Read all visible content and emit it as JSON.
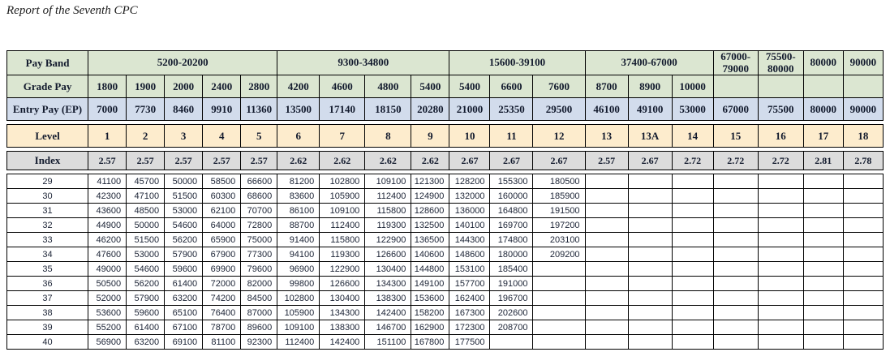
{
  "page": {
    "title": "Report of the Seventh CPC"
  },
  "colors": {
    "band_green": "#dbe6d1",
    "entry_blue": "#d2dcec",
    "level_tan": "#fdeccd",
    "index_gray": "#dcdcdc",
    "border": "#000000"
  },
  "table": {
    "corner_labels": {
      "pay_band": "Pay Band",
      "grade_pay": "Grade Pay",
      "entry_pay": "Entry Pay (EP)",
      "level": "Level",
      "index": "Index"
    },
    "pay_bands": [
      {
        "label": "5200-20200",
        "span": 5
      },
      {
        "label": "9300-34800",
        "span": 4
      },
      {
        "label": "15600-39100",
        "span": 3
      },
      {
        "label": "37400-67000",
        "span": 3
      },
      {
        "label": "67000-\n79000",
        "span": 1
      },
      {
        "label": "75500-\n80000",
        "span": 1
      },
      {
        "label": "80000",
        "span": 1
      },
      {
        "label": "90000",
        "span": 1
      }
    ],
    "grade_pay": [
      "1800",
      "1900",
      "2000",
      "2400",
      "2800",
      "4200",
      "4600",
      "4800",
      "5400",
      "5400",
      "6600",
      "7600",
      "8700",
      "8900",
      "10000",
      "",
      "",
      "",
      ""
    ],
    "entry_pay": [
      "7000",
      "7730",
      "8460",
      "9910",
      "11360",
      "13500",
      "17140",
      "18150",
      "20280",
      "21000",
      "25350",
      "29500",
      "46100",
      "49100",
      "53000",
      "67000",
      "75500",
      "80000",
      "90000"
    ],
    "levels": [
      "1",
      "2",
      "3",
      "4",
      "5",
      "6",
      "7",
      "8",
      "9",
      "10",
      "11",
      "12",
      "13",
      "13A",
      "14",
      "15",
      "16",
      "17",
      "18"
    ],
    "index_row": [
      "2.57",
      "2.57",
      "2.57",
      "2.57",
      "2.57",
      "2.62",
      "2.62",
      "2.62",
      "2.62",
      "2.67",
      "2.67",
      "2.67",
      "2.57",
      "2.67",
      "2.72",
      "2.72",
      "2.72",
      "2.81",
      "2.78"
    ],
    "rows": [
      {
        "label": "29",
        "values": [
          "41100",
          "45700",
          "50000",
          "58500",
          "66600",
          "81200",
          "102800",
          "109100",
          "121300",
          "128200",
          "155300",
          "180500",
          "",
          "",
          "",
          "",
          "",
          "",
          ""
        ]
      },
      {
        "label": "30",
        "values": [
          "42300",
          "47100",
          "51500",
          "60300",
          "68600",
          "83600",
          "105900",
          "112400",
          "124900",
          "132000",
          "160000",
          "185900",
          "",
          "",
          "",
          "",
          "",
          "",
          ""
        ]
      },
      {
        "label": "31",
        "values": [
          "43600",
          "48500",
          "53000",
          "62100",
          "70700",
          "86100",
          "109100",
          "115800",
          "128600",
          "136000",
          "164800",
          "191500",
          "",
          "",
          "",
          "",
          "",
          "",
          ""
        ]
      },
      {
        "label": "32",
        "values": [
          "44900",
          "50000",
          "54600",
          "64000",
          "72800",
          "88700",
          "112400",
          "119300",
          "132500",
          "140100",
          "169700",
          "197200",
          "",
          "",
          "",
          "",
          "",
          "",
          ""
        ]
      },
      {
        "label": "33",
        "values": [
          "46200",
          "51500",
          "56200",
          "65900",
          "75000",
          "91400",
          "115800",
          "122900",
          "136500",
          "144300",
          "174800",
          "203100",
          "",
          "",
          "",
          "",
          "",
          "",
          ""
        ]
      },
      {
        "label": "34",
        "values": [
          "47600",
          "53000",
          "57900",
          "67900",
          "77300",
          "94100",
          "119300",
          "126600",
          "140600",
          "148600",
          "180000",
          "209200",
          "",
          "",
          "",
          "",
          "",
          "",
          ""
        ]
      },
      {
        "label": "35",
        "values": [
          "49000",
          "54600",
          "59600",
          "69900",
          "79600",
          "96900",
          "122900",
          "130400",
          "144800",
          "153100",
          "185400",
          "",
          "",
          "",
          "",
          "",
          "",
          "",
          ""
        ]
      },
      {
        "label": "36",
        "values": [
          "50500",
          "56200",
          "61400",
          "72000",
          "82000",
          "99800",
          "126600",
          "134300",
          "149100",
          "157700",
          "191000",
          "",
          "",
          "",
          "",
          "",
          "",
          "",
          ""
        ]
      },
      {
        "label": "37",
        "values": [
          "52000",
          "57900",
          "63200",
          "74200",
          "84500",
          "102800",
          "130400",
          "138300",
          "153600",
          "162400",
          "196700",
          "",
          "",
          "",
          "",
          "",
          "",
          "",
          ""
        ]
      },
      {
        "label": "38",
        "values": [
          "53600",
          "59600",
          "65100",
          "76400",
          "87000",
          "105900",
          "134300",
          "142400",
          "158200",
          "167300",
          "202600",
          "",
          "",
          "",
          "",
          "",
          "",
          "",
          ""
        ]
      },
      {
        "label": "39",
        "values": [
          "55200",
          "61400",
          "67100",
          "78700",
          "89600",
          "109100",
          "138300",
          "146700",
          "162900",
          "172300",
          "208700",
          "",
          "",
          "",
          "",
          "",
          "",
          "",
          ""
        ]
      },
      {
        "label": "40",
        "values": [
          "56900",
          "63200",
          "69100",
          "81100",
          "92300",
          "112400",
          "142400",
          "151100",
          "167800",
          "177500",
          "",
          "",
          "",
          "",
          "",
          "",
          "",
          "",
          ""
        ]
      }
    ]
  }
}
